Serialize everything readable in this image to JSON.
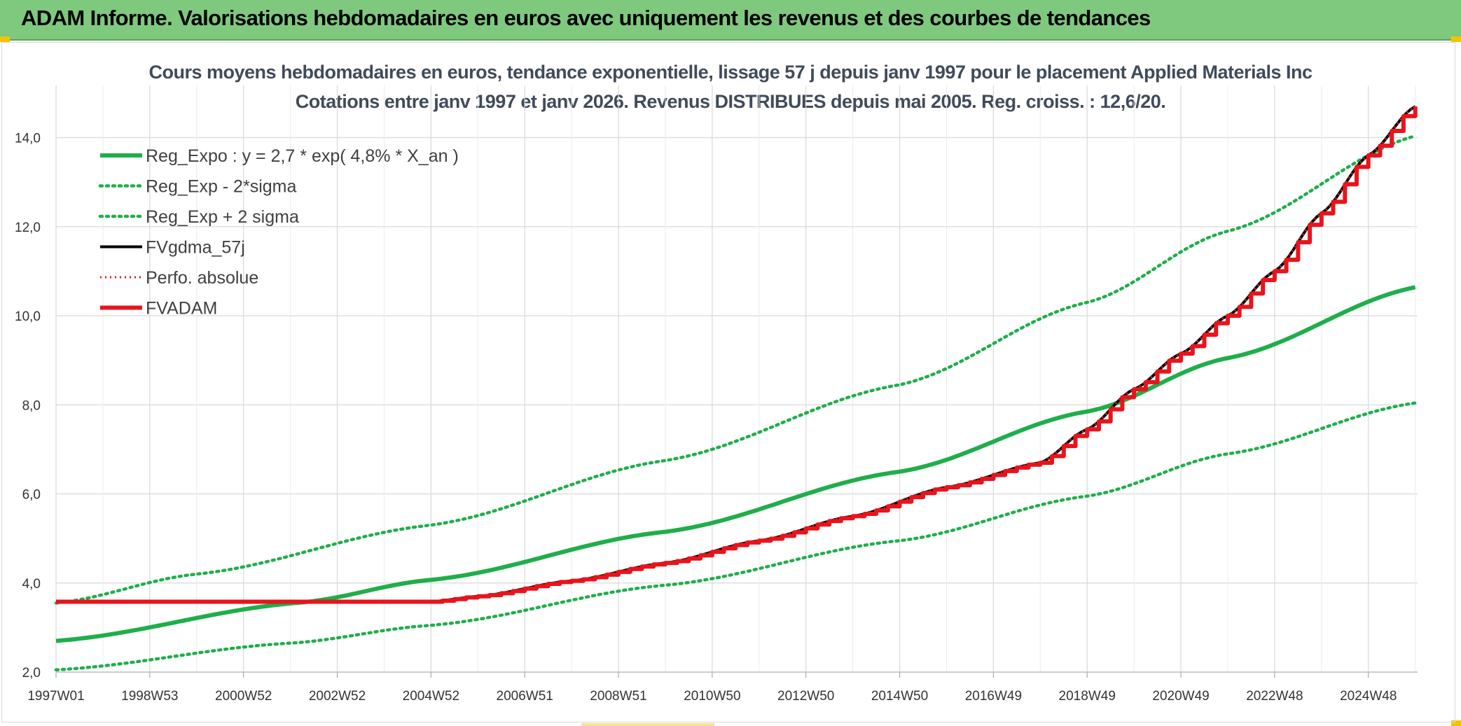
{
  "header": {
    "title": "ADAM Informe. Valorisations hebdomadaires en euros avec uniquement les revenus et des courbes de tendances"
  },
  "colors": {
    "green": "#1fae4b",
    "red": "#e8141c",
    "black": "#000000",
    "grid": "#d9d9d9",
    "header_bg": "#7fc97f"
  },
  "chart_data": {
    "type": "line",
    "title": "Cours moyens hebdomadaires en euros, tendance exponentielle, lissage 57 j depuis janv 1997 pour le placement Applied Materials Inc",
    "subtitle": "Cotations entre janv 1997 et janv 2026. Revenus DISTRIBUES depuis mai 2005. Reg. croiss. : 12,6/20.",
    "x_tick_labels": [
      "1997W01",
      "1998W53",
      "2000W52",
      "2002W52",
      "2004W52",
      "2006W51",
      "2008W51",
      "2010W50",
      "2012W50",
      "2014W50",
      "2016W49",
      "2018W49",
      "2020W49",
      "2022W48",
      "2024W48"
    ],
    "x_range_years": [
      1997.0,
      2026.05
    ],
    "y_ticks": [
      "2,0",
      "4,0",
      "6,0",
      "8,0",
      "10,0",
      "12,0",
      "14,0"
    ],
    "ylim": [
      2.0,
      14.7
    ],
    "grid": true,
    "legend_position": "top-left",
    "series": [
      {
        "name": "Reg_Expo : y = 2,7 * exp( 4,8% *  X_an )",
        "style": "solid-green",
        "x": [
          1997.0,
          2002.2,
          2005.0,
          2010.0,
          2015.0,
          2019.0,
          2022.0,
          2026.05
        ],
        "y": [
          2.7,
          3.56,
          4.07,
          5.15,
          6.5,
          7.85,
          9.05,
          10.65
        ]
      },
      {
        "name": "Reg_Exp - 2*sigma",
        "style": "dotted-green",
        "x": [
          1997.0,
          2002.0,
          2005.0,
          2010.0,
          2015.0,
          2019.0,
          2022.0,
          2026.05
        ],
        "y": [
          2.05,
          2.65,
          3.05,
          3.95,
          4.95,
          5.95,
          6.9,
          8.05
        ]
      },
      {
        "name": "Reg_Exp + 2 sigma",
        "style": "dotted-green",
        "x": [
          1997.0,
          2000.0,
          2005.0,
          2010.0,
          2015.0,
          2019.0,
          2022.0,
          2026.05
        ],
        "y": [
          3.55,
          4.2,
          5.3,
          6.75,
          8.45,
          10.3,
          11.9,
          14.05
        ]
      },
      {
        "name": "FVgdma_57j",
        "style": "solid-black",
        "x": [
          1997.0,
          2005.0,
          2006.0,
          2008.0,
          2010.0,
          2012.0,
          2014.0,
          2016.0,
          2018.0,
          2019.0,
          2020.0,
          2021.0,
          2022.0,
          2023.0,
          2024.0,
          2025.0,
          2026.0
        ],
        "y": [
          3.58,
          3.58,
          3.7,
          4.05,
          4.45,
          4.95,
          5.5,
          6.15,
          6.7,
          7.45,
          8.35,
          9.15,
          10.0,
          11.0,
          12.3,
          13.6,
          14.7
        ]
      },
      {
        "name": "Perfo. absolue",
        "style": "dotted-red",
        "x": [
          1997.0,
          2005.0,
          2006.0,
          2008.0,
          2010.0,
          2012.0,
          2014.0,
          2016.0,
          2018.0,
          2019.0,
          2020.0,
          2021.0,
          2022.0,
          2023.0,
          2024.0,
          2025.0,
          2026.0
        ],
        "y": [
          3.58,
          3.58,
          3.7,
          4.05,
          4.45,
          4.95,
          5.5,
          6.15,
          6.7,
          7.45,
          8.35,
          9.15,
          10.0,
          11.0,
          12.3,
          13.6,
          14.7
        ]
      },
      {
        "name": "FVADAM",
        "style": "solid-red-stepped",
        "x": [
          1997.0,
          2005.0,
          2006.0,
          2008.0,
          2010.0,
          2012.0,
          2014.0,
          2016.0,
          2018.0,
          2019.0,
          2020.0,
          2021.0,
          2022.0,
          2023.0,
          2024.0,
          2025.0,
          2026.0
        ],
        "y": [
          3.58,
          3.58,
          3.7,
          4.05,
          4.45,
          4.95,
          5.5,
          6.15,
          6.7,
          7.45,
          8.35,
          9.15,
          10.0,
          11.0,
          12.3,
          13.6,
          14.7
        ]
      }
    ]
  }
}
